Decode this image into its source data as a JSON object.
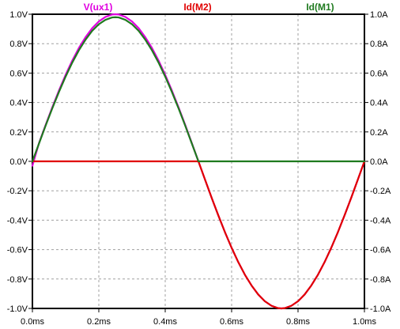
{
  "chart_data": {
    "type": "line",
    "title": "",
    "grid": true,
    "legend_placement": "top",
    "x": [
      0,
      0.02,
      0.04,
      0.06,
      0.08,
      0.1,
      0.12,
      0.14,
      0.16,
      0.18,
      0.2,
      0.22,
      0.24,
      0.25,
      0.26,
      0.28,
      0.3,
      0.32,
      0.34,
      0.36,
      0.38,
      0.4,
      0.42,
      0.44,
      0.46,
      0.48,
      0.5,
      0.52,
      0.54,
      0.56,
      0.58,
      0.6,
      0.62,
      0.64,
      0.66,
      0.68,
      0.7,
      0.72,
      0.74,
      0.75,
      0.76,
      0.78,
      0.8,
      0.82,
      0.84,
      0.86,
      0.88,
      0.9,
      0.92,
      0.94,
      0.96,
      0.98,
      1.0
    ],
    "x_axis": {
      "range": [
        0,
        1.0
      ],
      "ticks": [
        0,
        0.2,
        0.4,
        0.6,
        0.8,
        1.0
      ],
      "tick_labels": [
        "0.0ms",
        "0.2ms",
        "0.4ms",
        "0.6ms",
        "0.8ms",
        "1.0ms"
      ],
      "label": ""
    },
    "y_left": {
      "range": [
        -1.0,
        1.0
      ],
      "ticks": [
        1.0,
        0.8,
        0.6,
        0.4,
        0.2,
        0.0,
        -0.2,
        -0.4,
        -0.6,
        -0.8,
        -1.0
      ],
      "tick_labels": [
        "1.0V",
        "0.8V",
        "0.6V",
        "0.4V",
        "0.2V",
        "0.0V",
        "-0.2V",
        "-0.4V",
        "-0.6V",
        "-0.8V",
        "-1.0V"
      ],
      "label": ""
    },
    "y_right": {
      "range": [
        -1.0,
        1.0
      ],
      "ticks": [
        1.0,
        0.8,
        0.6,
        0.4,
        0.2,
        0.0,
        -0.2,
        -0.4,
        -0.6,
        -0.8,
        -1.0
      ],
      "tick_labels": [
        "1.0A",
        "0.8A",
        "0.6A",
        "0.4A",
        "0.2A",
        "0.0A",
        "-0.2A",
        "-0.4A",
        "-0.6A",
        "-0.8A",
        "-1.0A"
      ],
      "label": ""
    },
    "series": [
      {
        "name": "V(ux1)",
        "color": "#e000e0",
        "axis": "left",
        "values": [
          -0.03,
          0.125,
          0.249,
          0.368,
          0.482,
          0.588,
          0.685,
          0.771,
          0.844,
          0.905,
          0.951,
          0.982,
          0.998,
          1.0,
          0.998,
          0.982,
          0.951,
          0.905,
          0.844,
          0.771,
          0.685,
          0.588,
          0.482,
          0.368,
          0.249,
          0.125,
          0.0,
          -0.125,
          -0.249,
          -0.368,
          -0.482,
          -0.588,
          -0.685,
          -0.771,
          -0.844,
          -0.905,
          -0.951,
          -0.982,
          -0.998,
          -1.0,
          -0.998,
          -0.982,
          -0.951,
          -0.905,
          -0.844,
          -0.771,
          -0.685,
          -0.588,
          -0.482,
          -0.368,
          -0.249,
          -0.125,
          0.0
        ]
      },
      {
        "name": "Id(M2)",
        "color": "#e00000",
        "axis": "right",
        "values": [
          0,
          0,
          0,
          0,
          0,
          0,
          0,
          0,
          0,
          0,
          0,
          0,
          0,
          0,
          0,
          0,
          0,
          0,
          0,
          0,
          0,
          0,
          0,
          0,
          0,
          0,
          0,
          -0.125,
          -0.249,
          -0.368,
          -0.482,
          -0.588,
          -0.685,
          -0.771,
          -0.844,
          -0.905,
          -0.951,
          -0.982,
          -0.998,
          -1.0,
          -0.998,
          -0.982,
          -0.951,
          -0.905,
          -0.844,
          -0.771,
          -0.685,
          -0.588,
          -0.482,
          -0.368,
          -0.249,
          -0.125,
          0.0
        ]
      },
      {
        "name": "Id(M1)",
        "color": "#1f7a1f",
        "axis": "right",
        "values": [
          0.0,
          0.122,
          0.244,
          0.361,
          0.472,
          0.576,
          0.671,
          0.755,
          0.827,
          0.887,
          0.932,
          0.962,
          0.978,
          0.98,
          0.978,
          0.962,
          0.932,
          0.887,
          0.827,
          0.755,
          0.671,
          0.576,
          0.472,
          0.361,
          0.244,
          0.122,
          0.0,
          0,
          0,
          0,
          0,
          0,
          0,
          0,
          0,
          0,
          0,
          0,
          0,
          0,
          0,
          0,
          0,
          0,
          0,
          0,
          0,
          0,
          0,
          0,
          0,
          0,
          0.0
        ]
      }
    ]
  }
}
